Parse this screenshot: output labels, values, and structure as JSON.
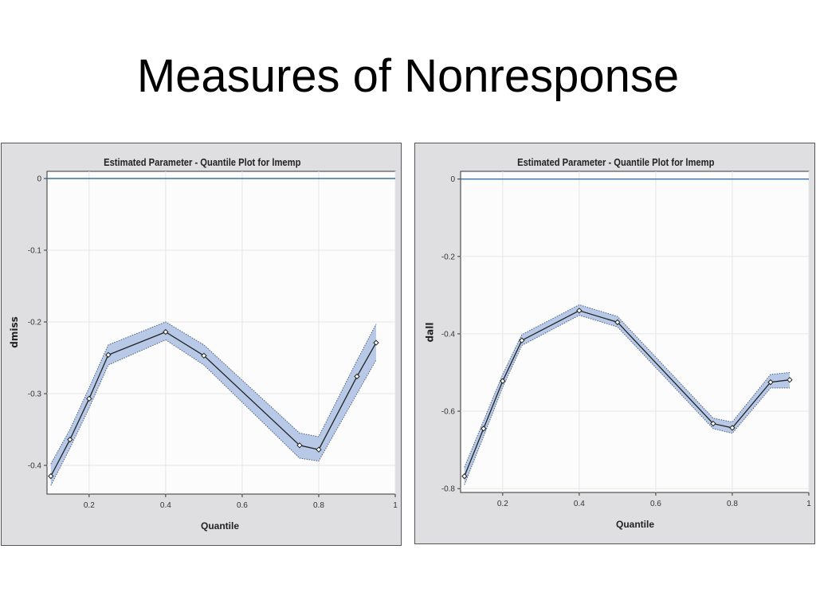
{
  "slide": {
    "title": "Measures of Nonresponse"
  },
  "colors": {
    "band": "#b7c9e6",
    "line": "#222222",
    "reference": "#3a6fa6",
    "grid": "#e6e6e6"
  },
  "chart_data": [
    {
      "type": "line",
      "title": "Estimated Parameter - Quantile Plot for lmemp",
      "xlabel": "Quantile",
      "ylabel": "dmiss",
      "xlim": [
        0.09,
        1.0
      ],
      "ylim": [
        -0.44,
        0.01
      ],
      "xticks": [
        0.2,
        0.4,
        0.6,
        0.8,
        1
      ],
      "xtick_labels": [
        "0.2",
        "0.4",
        "0.6",
        "0.8",
        "1"
      ],
      "yticks": [
        0,
        -0.1,
        -0.2,
        -0.3,
        -0.4
      ],
      "ytick_labels": [
        "0",
        "-0.1",
        "-0.2",
        "-0.3",
        "-0.4"
      ],
      "reference_line_y": 0,
      "series": [
        {
          "x": [
            0.1,
            0.15,
            0.2,
            0.25,
            0.4,
            0.5,
            0.75,
            0.8,
            0.9,
            0.95
          ],
          "values": [
            -0.415,
            -0.364,
            -0.307,
            -0.246,
            -0.214,
            -0.247,
            -0.372,
            -0.378,
            -0.276,
            -0.229
          ],
          "lower": [
            -0.428,
            -0.376,
            -0.32,
            -0.26,
            -0.225,
            -0.26,
            -0.39,
            -0.394,
            -0.3,
            -0.253
          ],
          "upper": [
            -0.398,
            -0.35,
            -0.292,
            -0.232,
            -0.2,
            -0.232,
            -0.355,
            -0.36,
            -0.254,
            -0.203
          ]
        }
      ]
    },
    {
      "type": "line",
      "title": "Estimated Parameter - Quantile Plot for lmemp",
      "xlabel": "Quantile",
      "ylabel": "dall",
      "xlim": [
        0.09,
        1.0
      ],
      "ylim": [
        -0.81,
        0.02
      ],
      "xticks": [
        0.2,
        0.4,
        0.6,
        0.8,
        1
      ],
      "xtick_labels": [
        "0.2",
        "0.4",
        "0.6",
        "0.8",
        "1"
      ],
      "yticks": [
        0,
        -0.2,
        -0.4,
        -0.6,
        -0.8
      ],
      "ytick_labels": [
        "0",
        "-0.2",
        "-0.4",
        "-0.6",
        "-0.8"
      ],
      "reference_line_y": 0,
      "series": [
        {
          "x": [
            0.1,
            0.15,
            0.2,
            0.25,
            0.4,
            0.5,
            0.75,
            0.8,
            0.9,
            0.95
          ],
          "values": [
            -0.768,
            -0.645,
            -0.522,
            -0.417,
            -0.34,
            -0.37,
            -0.632,
            -0.643,
            -0.525,
            -0.519
          ],
          "lower": [
            -0.79,
            -0.665,
            -0.538,
            -0.43,
            -0.352,
            -0.382,
            -0.645,
            -0.657,
            -0.54,
            -0.54
          ],
          "upper": [
            -0.745,
            -0.625,
            -0.505,
            -0.402,
            -0.325,
            -0.355,
            -0.618,
            -0.628,
            -0.505,
            -0.5
          ]
        }
      ]
    }
  ]
}
